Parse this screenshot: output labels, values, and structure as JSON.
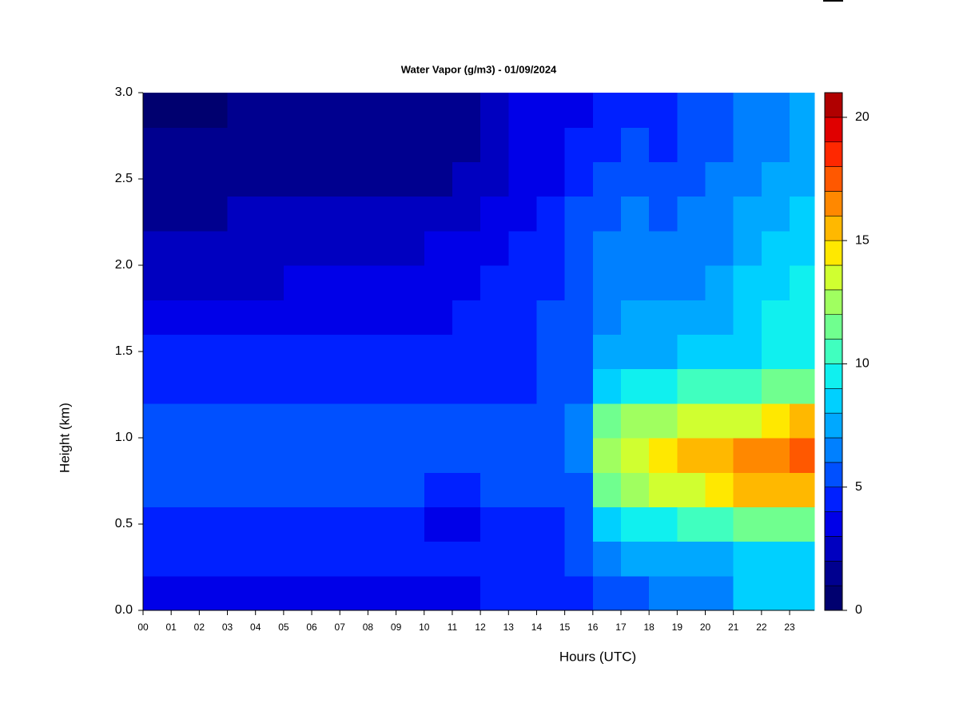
{
  "chart_data": {
    "type": "heatmap",
    "title": "Water Vapor (g/m3) - 01/09/2024",
    "xlabel": "Hours (UTC)",
    "ylabel": "Height (km)",
    "x": [
      0.5,
      1.5,
      2.5,
      3.5,
      4.5,
      5.5,
      6.5,
      7.5,
      8.5,
      9.5,
      10.5,
      11.5,
      12.5,
      13.5,
      14.5,
      15.5,
      16.5,
      17.5,
      18.5,
      19.5,
      20.5,
      21.5,
      22.5,
      23.5
    ],
    "y": [
      0.1,
      0.3,
      0.5,
      0.7,
      0.9,
      1.1,
      1.3,
      1.5,
      1.7,
      1.9,
      2.1,
      2.3,
      2.5,
      2.7,
      2.9
    ],
    "z": [
      [
        3,
        3,
        3,
        3,
        3,
        3.5,
        3.5,
        3.5,
        3.5,
        3.5,
        3.5,
        3.5,
        4,
        4,
        4,
        4,
        5,
        5,
        6,
        6,
        6.5,
        8,
        8,
        8.5
      ],
      [
        4.5,
        4.5,
        4.5,
        4.5,
        4.5,
        4.5,
        4.5,
        4.5,
        4.5,
        4.5,
        4.5,
        4.5,
        4.5,
        4.5,
        4.5,
        5,
        6.5,
        7,
        7,
        7,
        7.5,
        8,
        8,
        8.5
      ],
      [
        4,
        4,
        4,
        4,
        4,
        4,
        4,
        4,
        4,
        4,
        3.8,
        3.8,
        4.2,
        4.5,
        4.5,
        5,
        8,
        9,
        9.5,
        10,
        10.5,
        11,
        11.5,
        11
      ],
      [
        5,
        5,
        5,
        5,
        5,
        5,
        5,
        5,
        5,
        5,
        4.8,
        4.8,
        5,
        5,
        5,
        5.5,
        11,
        12,
        13,
        13.5,
        14,
        15,
        15.5,
        15
      ],
      [
        5.5,
        5.5,
        5.5,
        5.5,
        5.5,
        5.5,
        5.5,
        5.5,
        5.5,
        5.5,
        5.5,
        5.5,
        5.5,
        5.5,
        5.5,
        6,
        12,
        13,
        14,
        15,
        15,
        16,
        16.5,
        17
      ],
      [
        5.5,
        5.5,
        5.5,
        5.5,
        5.5,
        5.5,
        5.5,
        5.5,
        5.5,
        5.5,
        5.5,
        5.5,
        5.5,
        5.5,
        5.5,
        6,
        11,
        12,
        12.5,
        13,
        13,
        13.5,
        14,
        15
      ],
      [
        4.5,
        4.5,
        4.5,
        4.5,
        4.5,
        4.5,
        4.5,
        4.5,
        4.5,
        4.5,
        4.5,
        4.5,
        4.5,
        4.5,
        5,
        5.5,
        8.5,
        9,
        9.5,
        10,
        10,
        10.5,
        11,
        11
      ],
      [
        4,
        4,
        4,
        4,
        4,
        4,
        4,
        4,
        4,
        4,
        4,
        4,
        4.5,
        4.5,
        5,
        5.5,
        7,
        7.5,
        7.5,
        8,
        8,
        8.5,
        9,
        9.5
      ],
      [
        3,
        3,
        3,
        3,
        3,
        3.2,
        3.3,
        3.5,
        3.5,
        3.5,
        3.8,
        4,
        4.2,
        4.5,
        5,
        5.5,
        6.5,
        7,
        7,
        7,
        7.5,
        8,
        9,
        9.5
      ],
      [
        2.5,
        2.5,
        2.5,
        2.5,
        2.8,
        3,
        3,
        3,
        3,
        3.2,
        3.5,
        3.8,
        4,
        4.2,
        4.8,
        5.5,
        6,
        6.5,
        6.5,
        6.5,
        7,
        8,
        8.5,
        9
      ],
      [
        2,
        2,
        2,
        2.2,
        2.5,
        2.8,
        2.8,
        2.8,
        2.8,
        2.8,
        3,
        3.2,
        3.5,
        4,
        4.5,
        5,
        6,
        6,
        6,
        6,
        6.5,
        7.5,
        8,
        8.5
      ],
      [
        1.8,
        1.8,
        1.8,
        2,
        2,
        2,
        2,
        2,
        2,
        2,
        2.2,
        2.5,
        3,
        3.5,
        4,
        5,
        5.5,
        6,
        5.5,
        6,
        6.5,
        7,
        7.5,
        8
      ],
      [
        1.2,
        1.2,
        1.5,
        1.8,
        1.8,
        1.8,
        1.8,
        1.8,
        1.8,
        1.8,
        1.8,
        2,
        2.5,
        3.2,
        3.8,
        4.5,
        5,
        5.5,
        5,
        5.5,
        6,
        6.5,
        7,
        7.5
      ],
      [
        1,
        1,
        1,
        1.2,
        1.5,
        1.5,
        1.3,
        1.5,
        1.5,
        1.5,
        1.5,
        1.8,
        2.2,
        3,
        3.5,
        4,
        4.5,
        5,
        4.5,
        5,
        5.5,
        6,
        6.5,
        7.5
      ],
      [
        0.8,
        0.8,
        0.8,
        1,
        1.2,
        1.2,
        1,
        1.2,
        1.2,
        1.2,
        1.2,
        1.5,
        2,
        3,
        3.2,
        3.8,
        4.5,
        4.5,
        4,
        5,
        5.5,
        6,
        6.5,
        7.5
      ]
    ],
    "xlim": [
      0,
      23.88
    ],
    "ylim": [
      0,
      3
    ],
    "xticks": [
      {
        "value": 0,
        "label": "00"
      },
      {
        "value": 1,
        "label": "01"
      },
      {
        "value": 2,
        "label": "02"
      },
      {
        "value": 3,
        "label": "03"
      },
      {
        "value": 4,
        "label": "04"
      },
      {
        "value": 5,
        "label": "05"
      },
      {
        "value": 6,
        "label": "06"
      },
      {
        "value": 7,
        "label": "07"
      },
      {
        "value": 8,
        "label": "08"
      },
      {
        "value": 9,
        "label": "09"
      },
      {
        "value": 10,
        "label": "10"
      },
      {
        "value": 11,
        "label": "11"
      },
      {
        "value": 12,
        "label": "12"
      },
      {
        "value": 13,
        "label": "13"
      },
      {
        "value": 14,
        "label": "14"
      },
      {
        "value": 15,
        "label": "15"
      },
      {
        "value": 16,
        "label": "16"
      },
      {
        "value": 17,
        "label": "17"
      },
      {
        "value": 18,
        "label": "18"
      },
      {
        "value": 19,
        "label": "19"
      },
      {
        "value": 20,
        "label": "20"
      },
      {
        "value": 21,
        "label": "21"
      },
      {
        "value": 22,
        "label": "22"
      },
      {
        "value": 23,
        "label": "23"
      }
    ],
    "yticks": [
      {
        "value": 0,
        "label": "0.0"
      },
      {
        "value": 0.5,
        "label": "0.5"
      },
      {
        "value": 1,
        "label": "1.0"
      },
      {
        "value": 1.5,
        "label": "1.5"
      },
      {
        "value": 2,
        "label": "2.0"
      },
      {
        "value": 2.5,
        "label": "2.5"
      },
      {
        "value": 3,
        "label": "3.0"
      }
    ],
    "colorbar": {
      "levels": [
        0,
        1,
        2,
        3,
        4,
        5,
        6,
        7,
        8,
        9,
        10,
        11,
        12,
        13,
        14,
        15,
        16,
        17,
        18,
        19,
        20,
        21
      ],
      "colors": [
        "#00006f",
        "#00008f",
        "#0000c0",
        "#0000e8",
        "#0020ff",
        "#0050ff",
        "#0080ff",
        "#00a8ff",
        "#00d0ff",
        "#10f0ef",
        "#40ffbf",
        "#70ff8f",
        "#a0ff60",
        "#d0ff30",
        "#ffe800",
        "#ffb800",
        "#ff8800",
        "#ff5800",
        "#ff2800",
        "#e00000",
        "#b00000",
        "#800000"
      ],
      "ticks": [
        0,
        5,
        10,
        15,
        20
      ]
    }
  }
}
